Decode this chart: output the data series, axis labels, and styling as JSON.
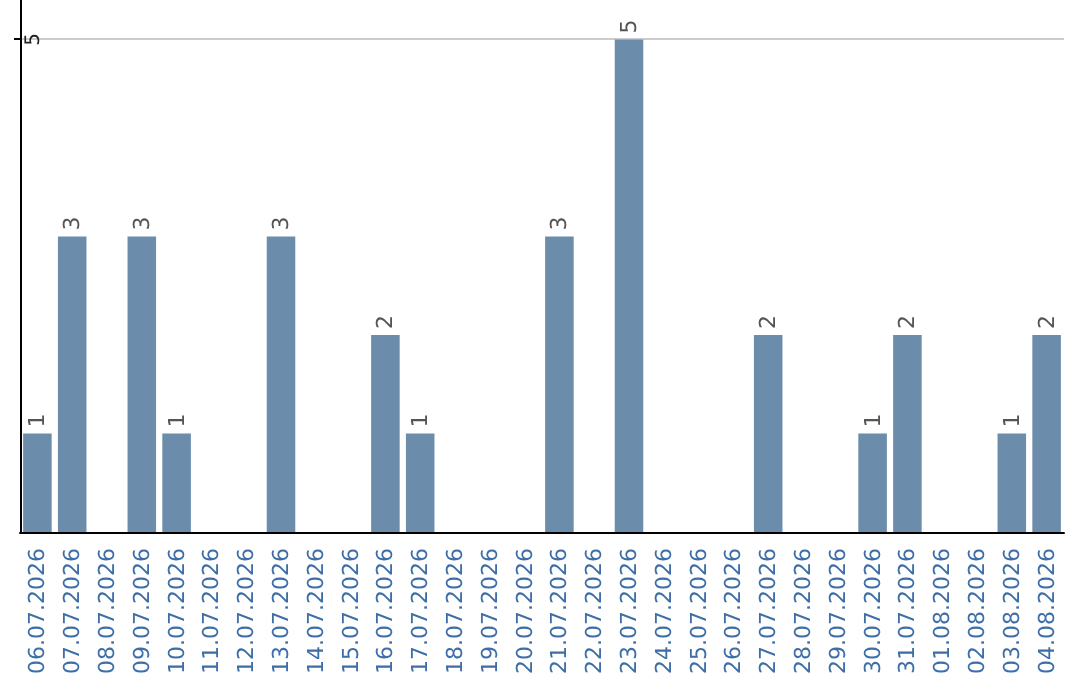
{
  "chart_data": {
    "type": "bar",
    "categories": [
      "06.07.2026",
      "07.07.2026",
      "08.07.2026",
      "09.07.2026",
      "10.07.2026",
      "11.07.2026",
      "12.07.2026",
      "13.07.2026",
      "14.07.2026",
      "15.07.2026",
      "16.07.2026",
      "17.07.2026",
      "18.07.2026",
      "19.07.2026",
      "20.07.2026",
      "21.07.2026",
      "22.07.2026",
      "23.07.2026",
      "24.07.2026",
      "25.07.2026",
      "26.07.2026",
      "27.07.2026",
      "28.07.2026",
      "29.07.2026",
      "30.07.2026",
      "31.07.2026",
      "01.08.2026",
      "02.08.2026",
      "03.08.2026",
      "04.08.2026"
    ],
    "values": [
      1,
      3,
      0,
      3,
      1,
      0,
      0,
      3,
      0,
      0,
      2,
      1,
      0,
      0,
      0,
      3,
      0,
      5,
      0,
      0,
      0,
      2,
      0,
      0,
      1,
      2,
      0,
      0,
      1,
      2
    ],
    "value_labels": [
      "1",
      "3",
      null,
      "3",
      "1",
      null,
      null,
      "3",
      null,
      null,
      "2",
      "1",
      null,
      null,
      null,
      "3",
      null,
      "5",
      null,
      null,
      null,
      "2",
      null,
      null,
      "1",
      "2",
      null,
      null,
      "1",
      "2"
    ],
    "color": "#6b8cab",
    "ylim": [
      0,
      5.4
    ],
    "yticks": [
      5
    ],
    "grid": "y"
  }
}
